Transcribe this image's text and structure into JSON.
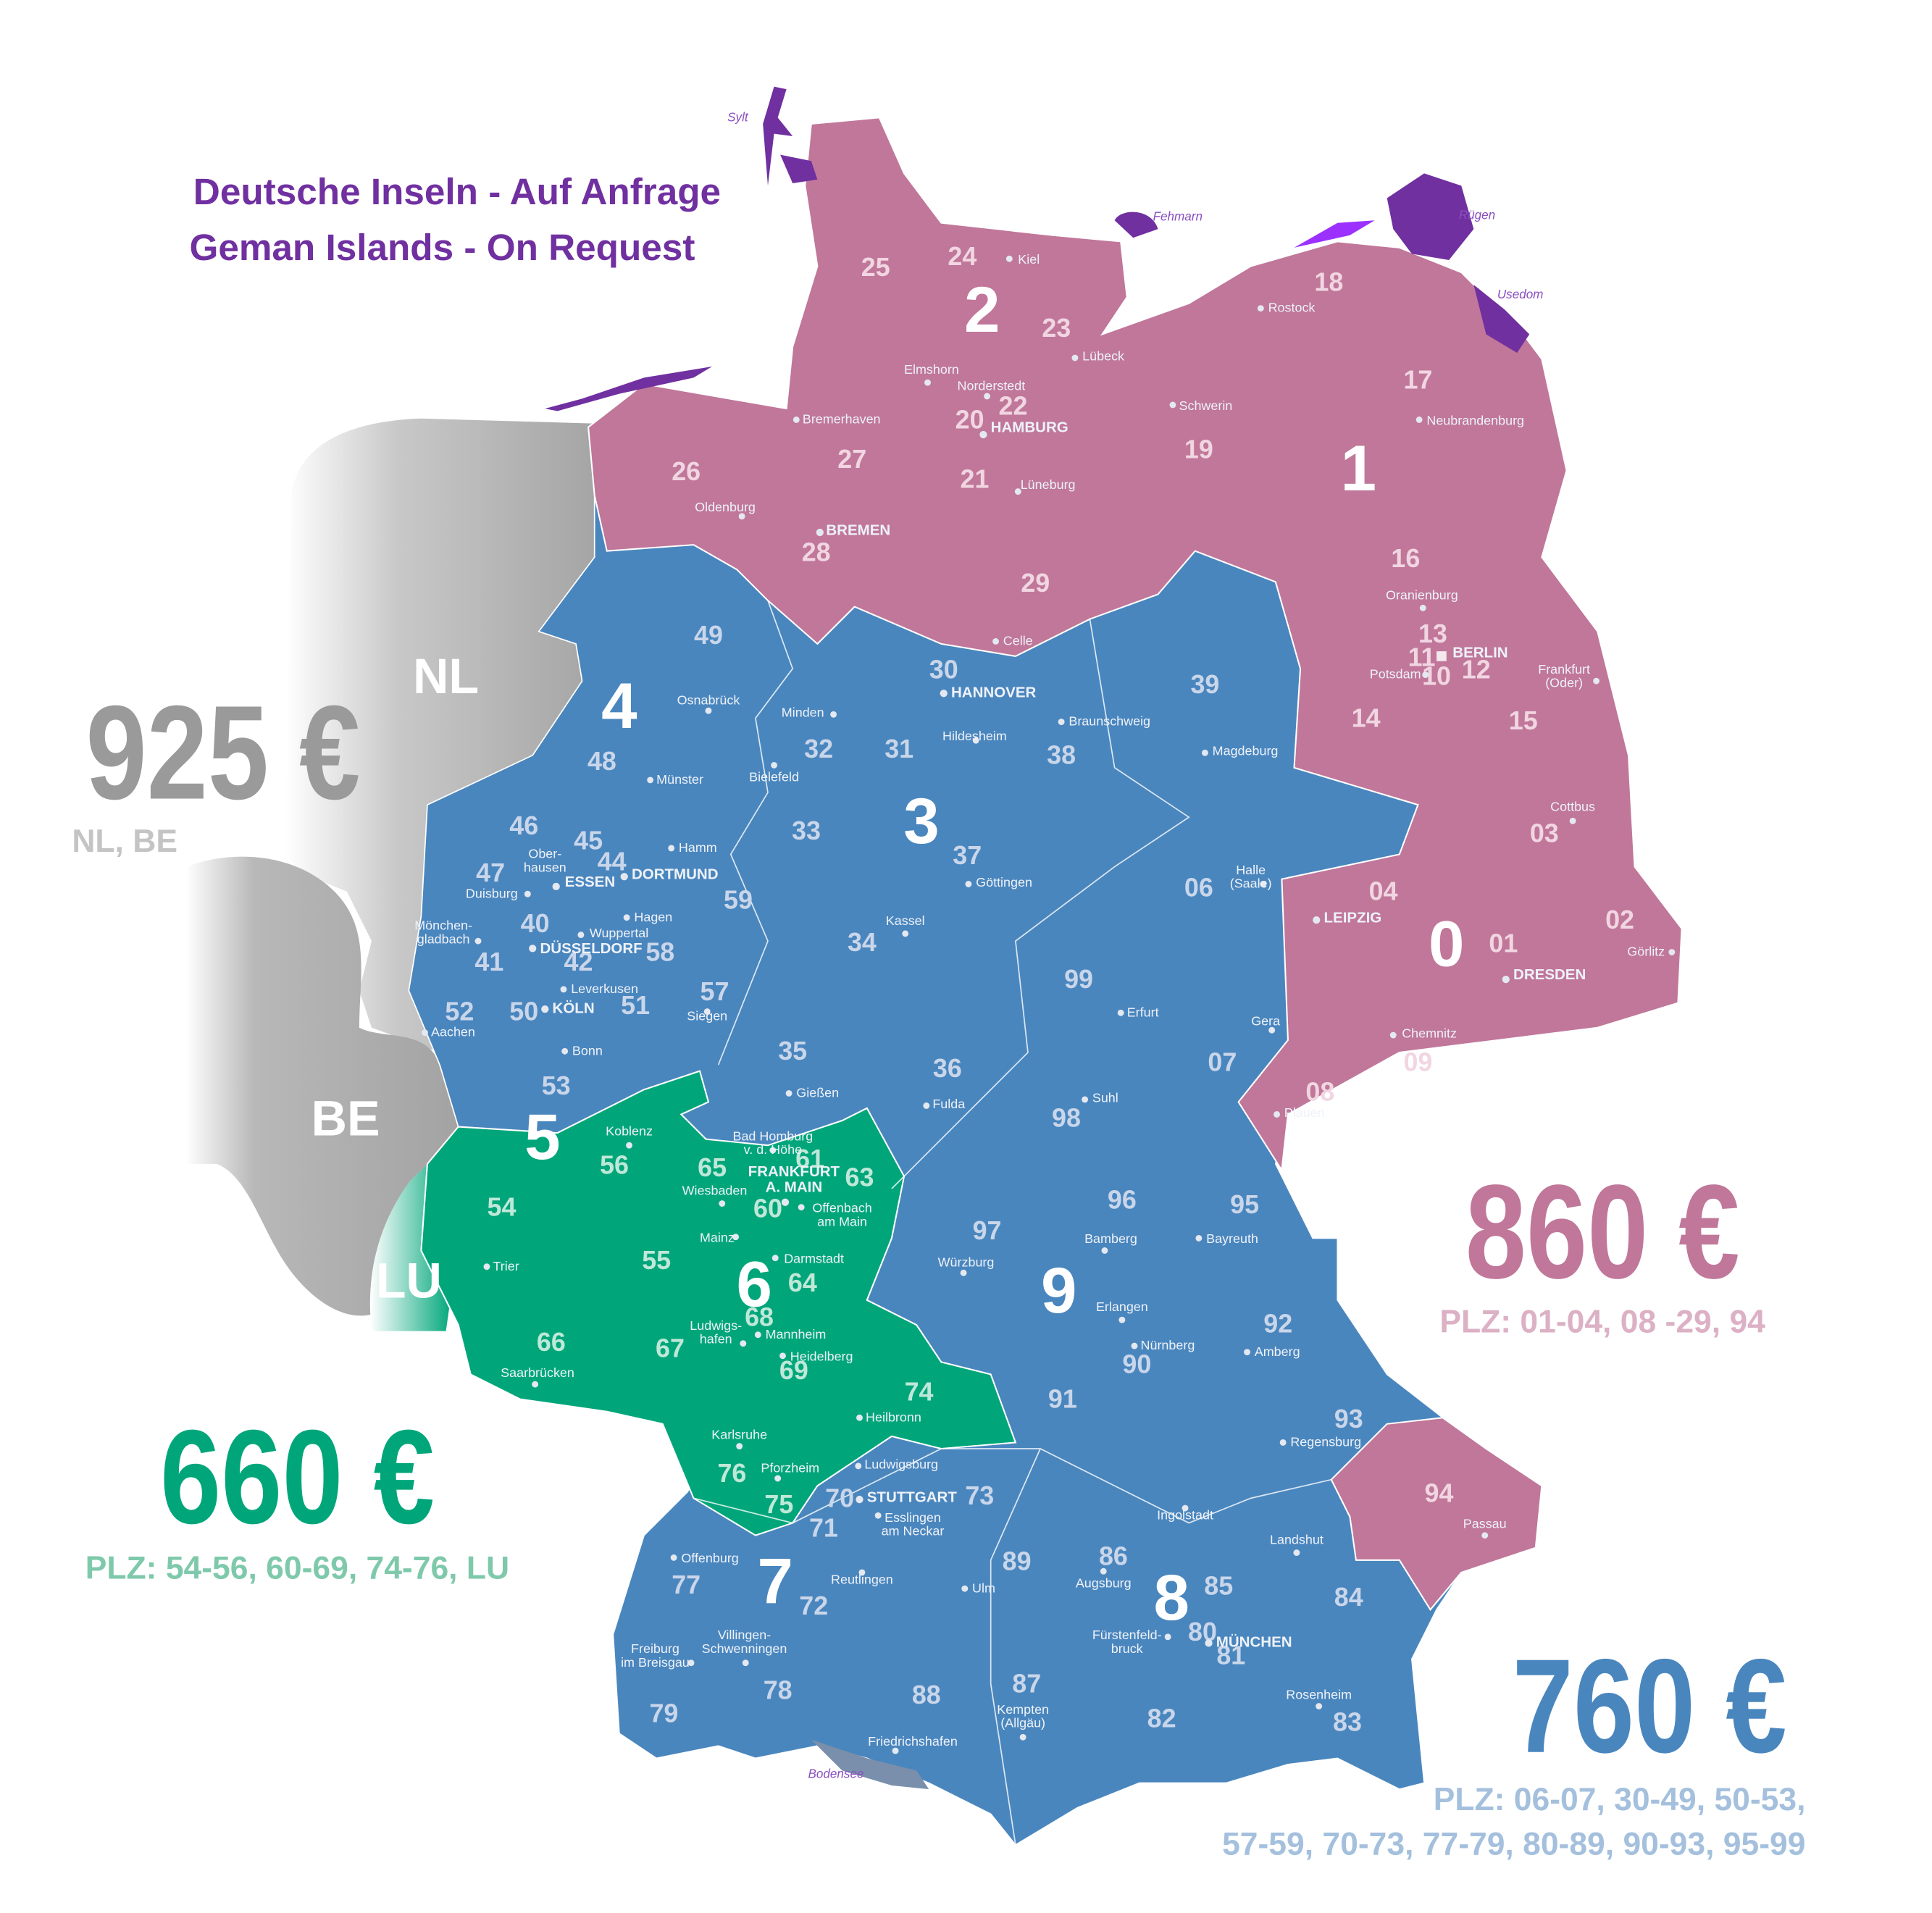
{
  "header": {
    "title_de": "Deutsche Inseln - Auf Anfrage",
    "title_en": "Geman Islands - On Request"
  },
  "colors": {
    "title": "#7030a0",
    "zone_pink": "#c0779a",
    "zone_blue": "#4a86be",
    "zone_green": "#00a67a",
    "neighbor_gray": "#a3a3a3",
    "islands": "#7030a0"
  },
  "prices": [
    {
      "amount": "925 €",
      "plz": [
        "NL, BE"
      ],
      "color": "#9a9a9a",
      "sub_color": "#c4c4c4"
    },
    {
      "amount": "860 €",
      "plz": [
        "PLZ: 01-04, 08 -29, 94"
      ],
      "color": "#c0779a",
      "sub_color": "#dcb0c5"
    },
    {
      "amount": "660 €",
      "plz": [
        "PLZ: 54-56, 60-69, 74-76, LU"
      ],
      "color": "#00a67a",
      "sub_color": "#7fc9ab"
    },
    {
      "amount": "760 €",
      "plz": [
        "PLZ: 06-07, 30-49, 50-53,",
        "57-59,  70-73, 77-79, 80-89, 90-93, 95-99"
      ],
      "color": "#4a86be",
      "sub_color": "#a4c0dd"
    }
  ],
  "countries": [
    "NL",
    "BE",
    "LU"
  ],
  "islands": [
    "Sylt",
    "Fehmarn",
    "Rügen",
    "Usedom",
    "Bodensee"
  ],
  "zones": [
    "0",
    "1",
    "2",
    "3",
    "4",
    "5",
    "6",
    "7",
    "8",
    "9"
  ],
  "plz_regions": [
    "01",
    "02",
    "03",
    "04",
    "06",
    "07",
    "08",
    "09",
    "10",
    "11",
    "12",
    "13",
    "14",
    "15",
    "16",
    "17",
    "18",
    "19",
    "20",
    "21",
    "22",
    "23",
    "24",
    "25",
    "26",
    "27",
    "28",
    "29",
    "30",
    "31",
    "32",
    "33",
    "34",
    "35",
    "36",
    "37",
    "38",
    "39",
    "40",
    "41",
    "42",
    "44",
    "45",
    "46",
    "47",
    "48",
    "49",
    "50",
    "51",
    "52",
    "53",
    "54",
    "55",
    "56",
    "57",
    "58",
    "59",
    "60",
    "61",
    "63",
    "64",
    "65",
    "66",
    "67",
    "68",
    "69",
    "70",
    "71",
    "72",
    "73",
    "74",
    "75",
    "76",
    "77",
    "78",
    "79",
    "80",
    "81",
    "82",
    "83",
    "84",
    "85",
    "86",
    "87",
    "88",
    "89",
    "90",
    "91",
    "92",
    "93",
    "94",
    "95",
    "96",
    "97",
    "98",
    "99"
  ],
  "cities": [
    {
      "name": "Kiel"
    },
    {
      "name": "Lübeck"
    },
    {
      "name": "Rostock"
    },
    {
      "name": "Schwerin"
    },
    {
      "name": "Neubrandenburg"
    },
    {
      "name": "Elmshorn"
    },
    {
      "name": "Norderstedt"
    },
    {
      "name": "HAMBURG",
      "capital": true
    },
    {
      "name": "Bremerhaven"
    },
    {
      "name": "Oldenburg"
    },
    {
      "name": "BREMEN",
      "capital": true
    },
    {
      "name": "Lüneburg"
    },
    {
      "name": "Celle"
    },
    {
      "name": "Oranienburg"
    },
    {
      "name": "BERLIN",
      "capital": true
    },
    {
      "name": "Potsdam"
    },
    {
      "name": "Frankfurt\n(Oder)"
    },
    {
      "name": "HANNOVER",
      "capital": true
    },
    {
      "name": "Braunschweig"
    },
    {
      "name": "Hildesheim"
    },
    {
      "name": "Magdeburg"
    },
    {
      "name": "Minden"
    },
    {
      "name": "Osnabrück"
    },
    {
      "name": "Bielefeld"
    },
    {
      "name": "Münster"
    },
    {
      "name": "Hamm"
    },
    {
      "name": "DORTMUND",
      "capital": true
    },
    {
      "name": "ESSEN",
      "capital": true
    },
    {
      "name": "Ober-\nhausen"
    },
    {
      "name": "Duisburg"
    },
    {
      "name": "Hagen"
    },
    {
      "name": "Wuppertal"
    },
    {
      "name": "Mönchen-\ngladbach"
    },
    {
      "name": "DÜSSELDORF",
      "capital": true
    },
    {
      "name": "Leverkusen"
    },
    {
      "name": "KÖLN",
      "capital": true
    },
    {
      "name": "Bonn"
    },
    {
      "name": "Aachen"
    },
    {
      "name": "Siegen"
    },
    {
      "name": "Kassel"
    },
    {
      "name": "Göttingen"
    },
    {
      "name": "Halle\n(Saale)"
    },
    {
      "name": "LEIPZIG",
      "capital": true
    },
    {
      "name": "DRESDEN",
      "capital": true
    },
    {
      "name": "Görlitz"
    },
    {
      "name": "Cottbus"
    },
    {
      "name": "Erfurt"
    },
    {
      "name": "Gera"
    },
    {
      "name": "Chemnitz"
    },
    {
      "name": "Plauen"
    },
    {
      "name": "Suhl"
    },
    {
      "name": "Fulda"
    },
    {
      "name": "Gießen"
    },
    {
      "name": "Koblenz"
    },
    {
      "name": "Bad Homburg\nv. d. Höhe"
    },
    {
      "name": "FRANKFURT\nA. MAIN",
      "capital": true
    },
    {
      "name": "Offenbach\nam Main"
    },
    {
      "name": "Wiesbaden"
    },
    {
      "name": "Mainz"
    },
    {
      "name": "Darmstadt"
    },
    {
      "name": "Trier"
    },
    {
      "name": "Ludwigs-\nhafen"
    },
    {
      "name": "Mannheim"
    },
    {
      "name": "Heidelberg"
    },
    {
      "name": "Saarbrücken"
    },
    {
      "name": "Heilbronn"
    },
    {
      "name": "Karlsruhe"
    },
    {
      "name": "Pforzheim"
    },
    {
      "name": "Ludwigsburg"
    },
    {
      "name": "STUTTGART",
      "capital": true
    },
    {
      "name": "Esslingen\nam Neckar"
    },
    {
      "name": "Offenburg"
    },
    {
      "name": "Reutlingen"
    },
    {
      "name": "Ulm"
    },
    {
      "name": "Villingen-\nSchwenningen"
    },
    {
      "name": "Freiburg\nim Breisgau"
    },
    {
      "name": "Friedrichshafen"
    },
    {
      "name": "Kempten\n(Allgäu)"
    },
    {
      "name": "Augsburg"
    },
    {
      "name": "Fürstenfeld-\nbruck"
    },
    {
      "name": "MÜNCHEN",
      "capital": true
    },
    {
      "name": "Rosenheim"
    },
    {
      "name": "Landshut"
    },
    {
      "name": "Ingolstadt"
    },
    {
      "name": "Regensburg"
    },
    {
      "name": "Amberg"
    },
    {
      "name": "Nürnberg"
    },
    {
      "name": "Erlangen"
    },
    {
      "name": "Bamberg"
    },
    {
      "name": "Bayreuth"
    },
    {
      "name": "Würzburg"
    },
    {
      "name": "Passau"
    }
  ]
}
